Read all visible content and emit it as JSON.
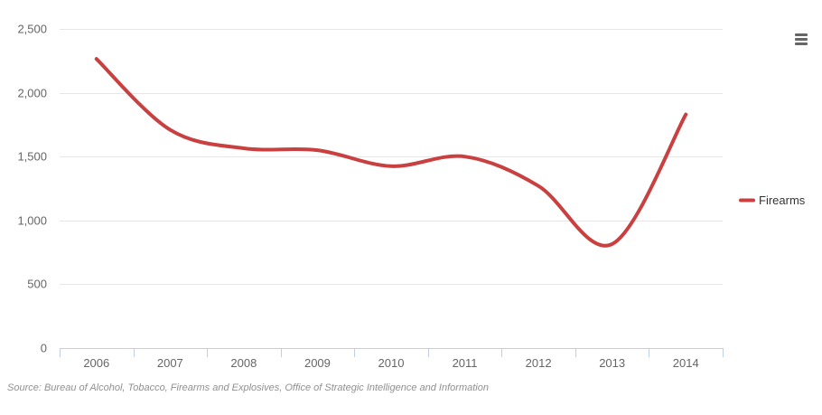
{
  "chart_data": {
    "type": "line",
    "categories": [
      "2006",
      "2007",
      "2008",
      "2009",
      "2010",
      "2011",
      "2012",
      "2013",
      "2014"
    ],
    "series": [
      {
        "name": "Firearms",
        "values": [
          2265,
          1710,
          1565,
          1550,
          1425,
          1500,
          1270,
          815,
          1830
        ],
        "color": "#c94040"
      }
    ],
    "ylim": [
      0,
      2500
    ],
    "yticks": [
      0,
      500,
      1000,
      1500,
      2000,
      2500
    ],
    "ytick_labels": [
      "0",
      "500",
      "1,000",
      "1,500",
      "2,000",
      "2,500"
    ],
    "grid": true,
    "legend_position": "right",
    "source": "Source: Bureau of Alcohol, Tobacco, Firearms and Explosives, Office of Strategic Intelligence and Information"
  },
  "menu": {
    "icon": "hamburger-menu-icon"
  }
}
